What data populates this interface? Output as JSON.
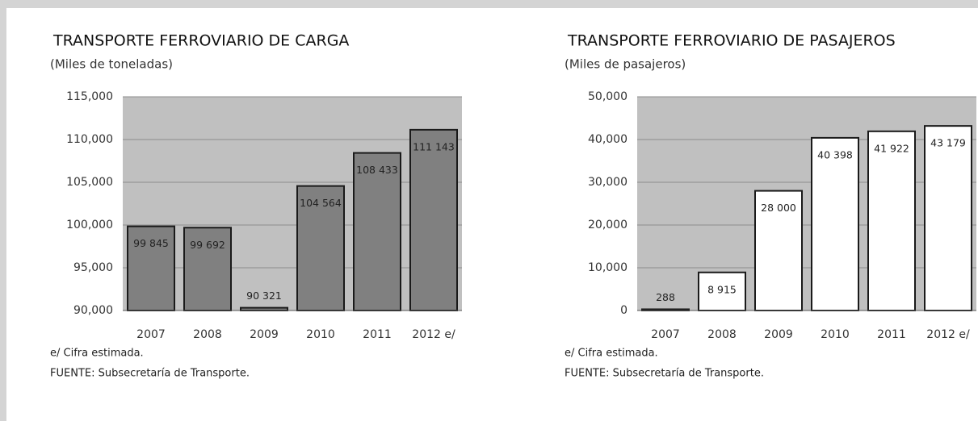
{
  "chart_data": [
    {
      "type": "bar",
      "title": "TRANSPORTE FERROVIARIO DE CARGA",
      "subtitle": "(Miles de toneladas)",
      "categories": [
        "2007",
        "2008",
        "2009",
        "2010",
        "2011",
        "2012 e/"
      ],
      "values": [
        99845,
        99692,
        90321,
        104564,
        108433,
        111143
      ],
      "value_labels": [
        "99 845",
        "99 692",
        "90 321",
        "104 564",
        "108 433",
        "111 143"
      ],
      "color": "#808080",
      "value_label_color": "#ffffff",
      "plot_background": "#c0c0c0",
      "ylim": [
        90000,
        115000
      ],
      "yticks": [
        {
          "value": 90000,
          "label": "90,000"
        },
        {
          "value": 95000,
          "label": "95,000"
        },
        {
          "value": 100000,
          "label": "100,000"
        },
        {
          "value": 105000,
          "label": "105,000"
        },
        {
          "value": 110000,
          "label": "110,000"
        },
        {
          "value": 115000,
          "label": "115,000"
        }
      ],
      "grid": true,
      "footnote": "e/ Cifra estimada.",
      "source": "FUENTE: Subsecretaría de Transporte."
    },
    {
      "type": "bar",
      "title": "TRANSPORTE FERROVIARIO DE PASAJEROS",
      "subtitle": "(Miles de pasajeros)",
      "categories": [
        "2007",
        "2008",
        "2009",
        "2010",
        "2011",
        "2012 e/"
      ],
      "values": [
        288,
        8915,
        28000,
        40398,
        41922,
        43179
      ],
      "value_labels": [
        "288",
        "8 915",
        "28 000",
        "40 398",
        "41 922",
        "43 179"
      ],
      "color": "#ffffff",
      "value_label_color": "#222222",
      "plot_background": "#c0c0c0",
      "ylim": [
        0,
        50000
      ],
      "yticks": [
        0,
        {
          "value": 10000,
          "label": "10,000"
        },
        {
          "value": 20000,
          "label": "20,000"
        },
        {
          "value": 30000,
          "label": "30,000"
        },
        {
          "value": 40000,
          "label": "40,000"
        },
        {
          "value": 50000,
          "label": "50,000"
        }
      ],
      "grid": true,
      "footnote": "e/ Cifra estimada.",
      "source": "FUENTE: Subsecretaría de Transporte."
    }
  ]
}
